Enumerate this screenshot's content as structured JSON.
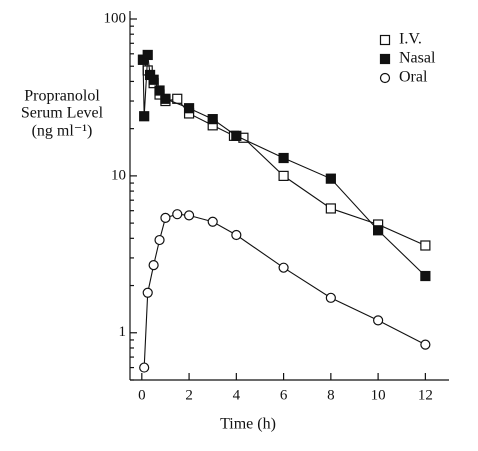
{
  "chart_data": {
    "type": "line",
    "xlabel": "Time (h)",
    "ylabel": [
      "Propranolol",
      "Serum Level",
      "(ng ml⁻¹)"
    ],
    "log_y": true,
    "xlim": [
      -0.5,
      13
    ],
    "xticks": [
      0,
      2,
      4,
      6,
      8,
      10,
      12
    ],
    "ylim": [
      0.5,
      100
    ],
    "yticks": [
      1,
      10,
      100
    ],
    "legend": "top-right",
    "series": [
      {
        "name": "I.V.",
        "color": "#111111",
        "marker": "square-open",
        "x": [
          0.05,
          0.25,
          0.5,
          0.75,
          1,
          1.5,
          2,
          3,
          3.9,
          4.3,
          6,
          8,
          10,
          12
        ],
        "values": [
          55,
          47,
          39,
          33,
          30,
          31,
          25,
          21,
          18,
          17.5,
          10,
          6.2,
          4.9,
          3.6
        ]
      },
      {
        "name": "Nasal",
        "color": "#111111",
        "marker": "square-filled",
        "x": [
          0.05,
          0.1,
          0.25,
          0.35,
          0.5,
          0.75,
          1,
          2,
          3,
          4,
          6,
          8,
          10,
          12
        ],
        "values": [
          55,
          24,
          59,
          44,
          41,
          35,
          31,
          27,
          23,
          18,
          13,
          9.6,
          4.5,
          2.3
        ]
      },
      {
        "name": "Oral",
        "color": "#111111",
        "marker": "circle-open",
        "x": [
          0.1,
          0.25,
          0.5,
          0.75,
          1,
          1.5,
          2,
          3,
          4,
          6,
          8,
          10,
          12
        ],
        "values": [
          0.6,
          1.8,
          2.7,
          3.9,
          5.4,
          5.7,
          5.6,
          5.1,
          4.2,
          2.6,
          1.67,
          1.2,
          0.84
        ]
      }
    ]
  }
}
